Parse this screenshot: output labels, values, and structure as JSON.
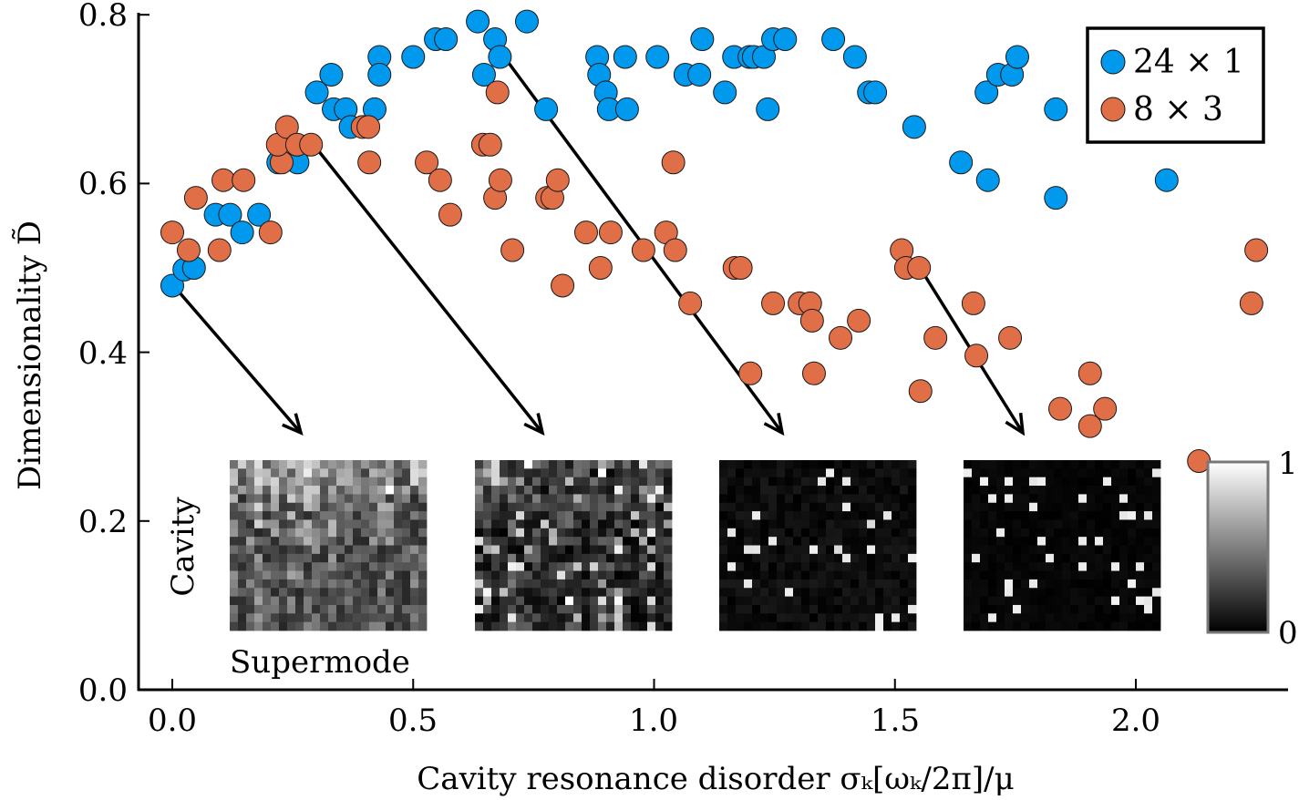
{
  "chart_data": {
    "type": "scatter",
    "title": "",
    "xlabel": "Cavity resonance disorder σₖ[ωₖ/2π]/μ",
    "ylabel": "Dimensionality D̃",
    "xlim": [
      -0.07,
      2.32
    ],
    "ylim": [
      0.0,
      0.8
    ],
    "xticks": [
      0.0,
      0.5,
      1.0,
      1.5,
      2.0
    ],
    "xtick_labels": [
      "0.0",
      "0.5",
      "1.0",
      "1.5",
      "2.0"
    ],
    "yticks": [
      0.0,
      0.2,
      0.4,
      0.6,
      0.8
    ],
    "ytick_labels": [
      "0.0",
      "0.2",
      "0.4",
      "0.6",
      "0.8"
    ],
    "grid": false,
    "legend_position": "top-right",
    "series": [
      {
        "name": "24 × 1",
        "color": "#0099EE",
        "points": [
          [
            0.0,
            0.479
          ],
          [
            0.025,
            0.498
          ],
          [
            0.045,
            0.5
          ],
          [
            0.09,
            0.563
          ],
          [
            0.12,
            0.563
          ],
          [
            0.145,
            0.542
          ],
          [
            0.18,
            0.563
          ],
          [
            0.22,
            0.625
          ],
          [
            0.26,
            0.625
          ],
          [
            0.3,
            0.708
          ],
          [
            0.33,
            0.729
          ],
          [
            0.335,
            0.688
          ],
          [
            0.36,
            0.688
          ],
          [
            0.37,
            0.667
          ],
          [
            0.42,
            0.688
          ],
          [
            0.43,
            0.75
          ],
          [
            0.43,
            0.729
          ],
          [
            0.5,
            0.75
          ],
          [
            0.547,
            0.771
          ],
          [
            0.568,
            0.771
          ],
          [
            0.634,
            0.792
          ],
          [
            0.647,
            0.729
          ],
          [
            0.67,
            0.771
          ],
          [
            0.68,
            0.75
          ],
          [
            0.736,
            0.792
          ],
          [
            0.776,
            0.688
          ],
          [
            0.882,
            0.75
          ],
          [
            0.886,
            0.729
          ],
          [
            0.9,
            0.708
          ],
          [
            0.906,
            0.688
          ],
          [
            0.94,
            0.75
          ],
          [
            0.944,
            0.688
          ],
          [
            1.007,
            0.75
          ],
          [
            1.065,
            0.729
          ],
          [
            1.094,
            0.729
          ],
          [
            1.1,
            0.771
          ],
          [
            1.147,
            0.708
          ],
          [
            1.166,
            0.75
          ],
          [
            1.198,
            0.75
          ],
          [
            1.207,
            0.75
          ],
          [
            1.228,
            0.75
          ],
          [
            1.236,
            0.688
          ],
          [
            1.247,
            0.771
          ],
          [
            1.272,
            0.771
          ],
          [
            1.372,
            0.771
          ],
          [
            1.417,
            0.75
          ],
          [
            1.446,
            0.708
          ],
          [
            1.459,
            0.708
          ],
          [
            1.54,
            0.667
          ],
          [
            1.637,
            0.625
          ],
          [
            1.693,
            0.604
          ],
          [
            1.69,
            0.708
          ],
          [
            1.714,
            0.729
          ],
          [
            1.743,
            0.729
          ],
          [
            1.754,
            0.75
          ],
          [
            1.834,
            0.583
          ],
          [
            1.834,
            0.688
          ],
          [
            2.064,
            0.604
          ]
        ]
      },
      {
        "name": "8 × 3",
        "color": "#E06E47",
        "points": [
          [
            0.0,
            0.542
          ],
          [
            0.034,
            0.521
          ],
          [
            0.049,
            0.583
          ],
          [
            0.098,
            0.521
          ],
          [
            0.106,
            0.604
          ],
          [
            0.148,
            0.604
          ],
          [
            0.204,
            0.542
          ],
          [
            0.227,
            0.625
          ],
          [
            0.219,
            0.646
          ],
          [
            0.238,
            0.667
          ],
          [
            0.259,
            0.646
          ],
          [
            0.288,
            0.646
          ],
          [
            0.395,
            0.667
          ],
          [
            0.407,
            0.667
          ],
          [
            0.409,
            0.625
          ],
          [
            0.528,
            0.625
          ],
          [
            0.556,
            0.604
          ],
          [
            0.577,
            0.563
          ],
          [
            0.645,
            0.646
          ],
          [
            0.66,
            0.646
          ],
          [
            0.67,
            0.583
          ],
          [
            0.681,
            0.604
          ],
          [
            0.675,
            0.708
          ],
          [
            0.706,
            0.521
          ],
          [
            0.778,
            0.583
          ],
          [
            0.789,
            0.583
          ],
          [
            0.8,
            0.604
          ],
          [
            0.81,
            0.479
          ],
          [
            0.859,
            0.542
          ],
          [
            0.889,
            0.5
          ],
          [
            0.91,
            0.542
          ],
          [
            0.978,
            0.521
          ],
          [
            1.025,
            0.542
          ],
          [
            1.04,
            0.625
          ],
          [
            1.044,
            0.521
          ],
          [
            1.075,
            0.458
          ],
          [
            1.167,
            0.5
          ],
          [
            1.18,
            0.5
          ],
          [
            1.2,
            0.375
          ],
          [
            1.247,
            0.458
          ],
          [
            1.302,
            0.458
          ],
          [
            1.324,
            0.458
          ],
          [
            1.328,
            0.4375
          ],
          [
            1.332,
            0.375
          ],
          [
            1.387,
            0.417
          ],
          [
            1.425,
            0.4375
          ],
          [
            1.514,
            0.521
          ],
          [
            1.523,
            0.5
          ],
          [
            1.55,
            0.5
          ],
          [
            1.553,
            0.354
          ],
          [
            1.584,
            0.417
          ],
          [
            1.663,
            0.458
          ],
          [
            1.669,
            0.396
          ],
          [
            1.739,
            0.417
          ],
          [
            1.843,
            0.333
          ],
          [
            1.905,
            0.375
          ],
          [
            1.905,
            0.3125
          ],
          [
            1.936,
            0.333
          ],
          [
            2.131,
            0.271
          ],
          [
            2.24,
            0.458
          ],
          [
            2.25,
            0.521
          ]
        ]
      }
    ],
    "annotations": {
      "arrows_from": [
        [
          0.0,
          0.479
        ],
        [
          0.3,
          0.646
        ],
        [
          0.7,
          0.75
        ],
        [
          1.55,
          0.5
        ]
      ],
      "inset_ylabel": "Cavity",
      "inset_xlabel": "Supermode",
      "colorbar_max_label": "1",
      "colorbar_min_label": "0",
      "colormap": "grayscale"
    }
  }
}
